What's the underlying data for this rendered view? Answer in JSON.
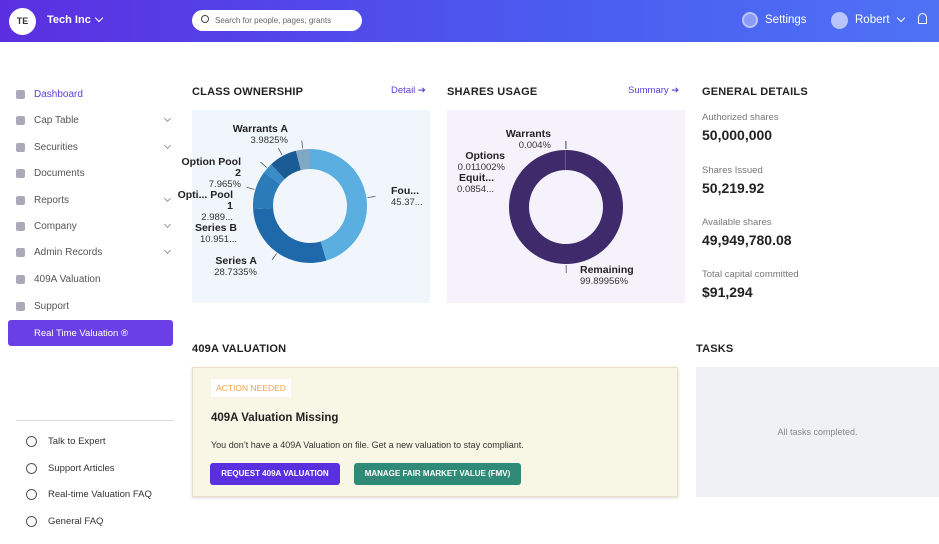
{
  "header": {
    "avatar": "TE",
    "company": "Tech Inc",
    "search_placeholder": "Search for people, pages, grants",
    "settings": "Settings",
    "user": "Robert"
  },
  "sidebar": {
    "nav": [
      "Dashboard",
      "Cap Table",
      "Securities",
      "Documents",
      "Reports",
      "Company",
      "Admin Records",
      "409A Valuation",
      "Support"
    ],
    "highlight": "Real Time Valuation ®",
    "help": [
      "Talk to Expert",
      "Support Articles",
      "Real-time Valuation FAQ",
      "General FAQ"
    ]
  },
  "chart_data": [
    {
      "type": "donut",
      "title": "CLASS OWNERSHIP",
      "link": "Detail",
      "categories": [
        "Fou...",
        "Series A",
        "Series B",
        "Opti... Pool 1",
        "Option Pool 2",
        "Warrants A"
      ],
      "values": [
        45.379,
        28.7335,
        10.951,
        2.989,
        7.965,
        3.9825
      ],
      "value_labels": [
        "45.37...",
        "28.7335%",
        "10.951...",
        "2.989...",
        "7.965%",
        "3.9825%"
      ],
      "colors": [
        "#5aaee0",
        "#1f68a9",
        "#2c7bb9",
        "#3a8cc6",
        "#1a5b95",
        "#7fa8c6"
      ]
    },
    {
      "type": "donut",
      "title": "SHARES USAGE",
      "link": "Summary",
      "categories": [
        "Remaining",
        "Equit...",
        "Options",
        "Warrants"
      ],
      "values": [
        99.89956,
        0.0854,
        0.011002,
        0.004
      ],
      "value_labels": [
        "99.89956%",
        "0.0854...",
        "0.011002%",
        "0.004%"
      ],
      "colors": [
        "#3f2a6b",
        "#7a68a3",
        "#8c7cb3",
        "#a89bc9"
      ]
    }
  ],
  "general_details": {
    "title": "GENERAL DETAILS",
    "items": [
      {
        "label": "Authorized shares",
        "value": "50,000,000"
      },
      {
        "label": "Shares Issued",
        "value": "50,219.92"
      },
      {
        "label": "Available shares",
        "value": "49,949,780.08"
      },
      {
        "label": "Total capital committed",
        "value": "$91,294"
      }
    ]
  },
  "valuation": {
    "title": "409A VALUATION",
    "badge": "ACTION NEEDED",
    "heading": "409A Valuation Missing",
    "text": "You don’t have a 409A Valuation on file. Get a new valuation to stay compliant.",
    "buttons": [
      "REQUEST 409A VALUATION",
      "MANAGE FAIR MARKET VALUE (FMV)"
    ]
  },
  "tasks": {
    "title": "TASKS",
    "empty": "All tasks completed."
  }
}
